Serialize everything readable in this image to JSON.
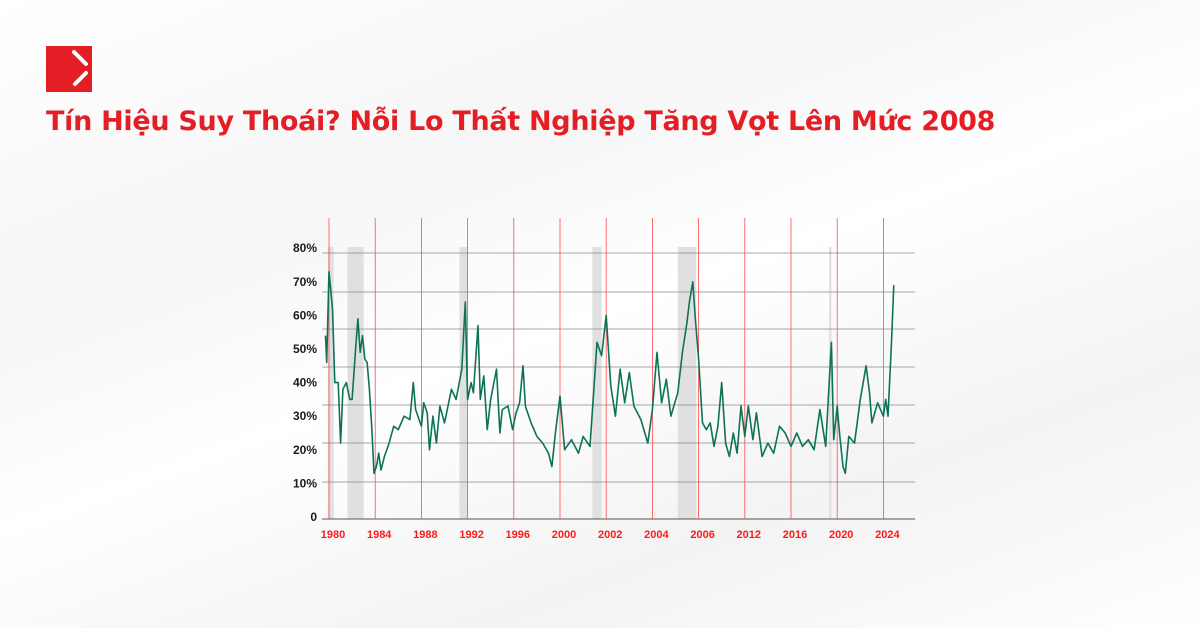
{
  "header": {
    "title": "Tín Hiệu Suy Thoái? Nỗi Lo Thất Nghiệp Tăng Vọt Lên Mức 2008",
    "logo_color": "#e31e24"
  },
  "chart_data": {
    "type": "line",
    "title": "",
    "xlabel": "",
    "ylabel": "",
    "ylim": [
      0,
      80
    ],
    "grid": true,
    "legend": "none",
    "y_ticks": [
      "0",
      "10%",
      "20%",
      "30%",
      "40%",
      "50%",
      "60%",
      "70%",
      "80%"
    ],
    "x_ticks": [
      "1980",
      "1984",
      "1988",
      "1992",
      "1996",
      "2000",
      "2002",
      "2004",
      "2006",
      "2012",
      "2016",
      "2020",
      "2024"
    ],
    "line_color": "#0e7257",
    "tick_line_color": "#ff4d4d",
    "shaded_color": "#e0e0e0",
    "shaded_periods": [
      [
        1979.9,
        1980.4
      ],
      [
        1981.6,
        1983.0
      ],
      [
        1991.3,
        1992.0
      ],
      [
        2001.4,
        2001.8
      ],
      [
        2005.1,
        2005.9
      ],
      [
        2019.3,
        2019.5
      ]
    ],
    "series": [
      {
        "x": [
          1979.7,
          1979.8,
          1980.0,
          1980.3,
          1980.5,
          1980.8,
          1981.0,
          1981.2,
          1981.5,
          1981.8,
          1982.0,
          1982.3,
          1982.5,
          1982.7,
          1982.9,
          1983.1,
          1983.3,
          1983.5,
          1983.7,
          1983.9,
          1984.1,
          1984.3,
          1984.5,
          1984.8,
          1985.2,
          1985.6,
          1986.0,
          1986.5,
          1987.0,
          1987.3,
          1987.5,
          1988.0,
          1988.2,
          1988.5,
          1988.7,
          1989.0,
          1989.3,
          1989.6,
          1990.0,
          1990.3,
          1990.6,
          1991.0,
          1991.5,
          1991.8,
          1992.0,
          1992.3,
          1992.5,
          1992.7,
          1992.9,
          1993.1,
          1993.4,
          1993.7,
          1994.0,
          1994.5,
          1994.8,
          1995.0,
          1995.5,
          1995.9,
          1996.2,
          1996.5,
          1996.8,
          1997.0,
          1997.5,
          1998.0,
          1998.5,
          1999.0,
          1999.3,
          1999.6,
          2000.0,
          2000.2,
          2000.5,
          2000.8,
          2001.0,
          2001.3,
          2001.6,
          2001.8,
          2002.0,
          2002.2,
          2002.4,
          2002.6,
          2002.8,
          2003.0,
          2003.2,
          2003.5,
          2003.8,
          2004.0,
          2004.2,
          2004.4,
          2004.6,
          2004.8,
          2005.1,
          2005.3,
          2005.5,
          2005.6,
          2005.75,
          2005.85,
          2006.0,
          2006.5,
          2007.0,
          2007.5,
          2008.0,
          2008.5,
          2009.0,
          2009.5,
          2010.0,
          2010.5,
          2011.0,
          2011.5,
          2012.0,
          2012.3,
          2012.7,
          2013.0,
          2013.5,
          2014.0,
          2014.5,
          2015.0,
          2015.5,
          2016.0,
          2016.5,
          2017.0,
          2017.5,
          2018.0,
          2018.5,
          2019.0,
          2019.5,
          2019.7,
          2020.0,
          2020.2,
          2020.5,
          2020.7,
          2021.0,
          2021.5,
          2022.0,
          2022.5,
          2022.8,
          2023.0,
          2023.5,
          2024.0,
          2024.2,
          2024.4,
          2024.7,
          2024.9
        ],
        "values": [
          54,
          46,
          73,
          62,
          40,
          40,
          22,
          38,
          40,
          35,
          35,
          50,
          59,
          49,
          54,
          47,
          46,
          38,
          27,
          13,
          15,
          19,
          14,
          18,
          22,
          27,
          26,
          30,
          29,
          40,
          32,
          27,
          34,
          31,
          20,
          30,
          22,
          33,
          28,
          33,
          38,
          35,
          44,
          64,
          35,
          40,
          37,
          47,
          57,
          35,
          42,
          26,
          35,
          44,
          25,
          32,
          33,
          26,
          31,
          34,
          45,
          33,
          28,
          24,
          22,
          19,
          15,
          25,
          36,
          20,
          23,
          19,
          24,
          21,
          52,
          48,
          60,
          39,
          30,
          44,
          34,
          43,
          33,
          29,
          22,
          32,
          49,
          34,
          41,
          30,
          37,
          49,
          58,
          64,
          70,
          60,
          47,
          28,
          26,
          28,
          21,
          27,
          40,
          22,
          18,
          25,
          19,
          33,
          24,
          33,
          23,
          31,
          18,
          22,
          19,
          27,
          25,
          21,
          25,
          21,
          23,
          20,
          32,
          21,
          52,
          23,
          33,
          25,
          15,
          13,
          24,
          22,
          35,
          45,
          37,
          28,
          34,
          30,
          35,
          30,
          52,
          69
        ]
      }
    ]
  }
}
